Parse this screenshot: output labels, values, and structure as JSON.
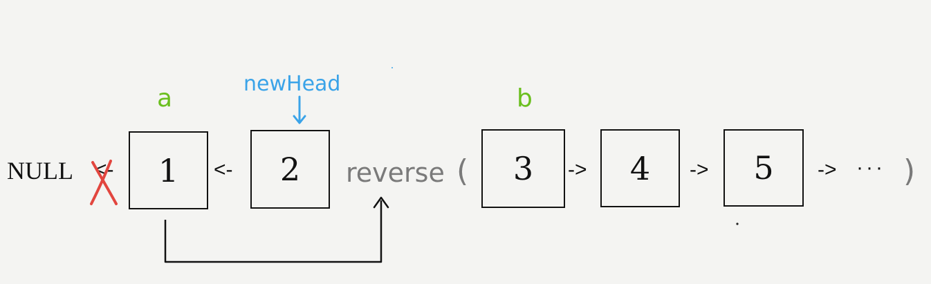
{
  "null_label": "NULL",
  "removed_pointer": "<-",
  "nodes": [
    "1",
    "2",
    "3",
    "4",
    "5"
  ],
  "pointers": {
    "between_1_2": "<-",
    "between_3_4": "->",
    "between_4_5": "->",
    "after_5": "->"
  },
  "ellipsis": "···",
  "reverse_call": {
    "name": "reverse",
    "open_paren": "(",
    "close_paren": ")"
  },
  "labels": {
    "a": "a",
    "b": "b",
    "new_head": "newHead"
  },
  "colors": {
    "node_border": "#111111",
    "reverse_text": "#7a7a7a",
    "label_green": "#6abf1e",
    "label_blue": "#3aa3e8",
    "cross_red": "#e2463f"
  }
}
